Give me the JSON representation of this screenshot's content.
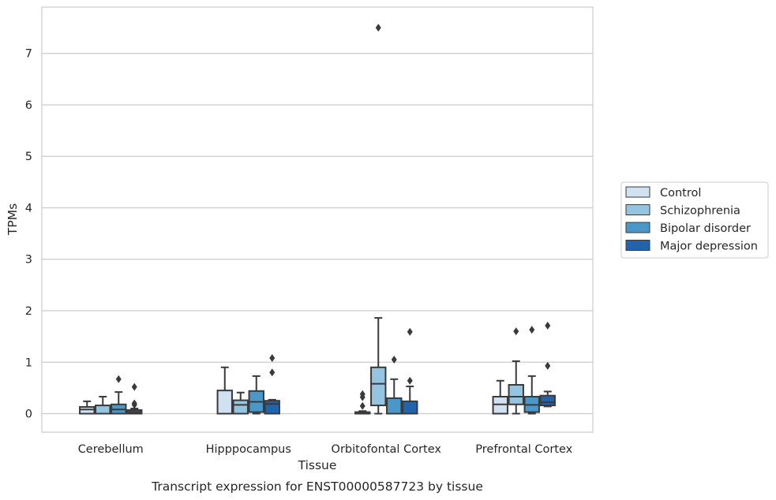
{
  "chart_data": {
    "type": "box",
    "title": "",
    "caption": "Transcript expression for ENST00000587723 by tissue",
    "xlabel": "Tissue",
    "ylabel": "TPMs",
    "ylim": [
      -0.36,
      7.9
    ],
    "yticks": [
      "0",
      "1",
      "2",
      "3",
      "4",
      "5",
      "6",
      "7"
    ],
    "grid": "horizontal",
    "legend_position": "right",
    "categories": [
      "Cerebellum",
      "Hipppocampus",
      "Orbitofontal Cortex",
      "Prefrontal Cortex"
    ],
    "series": [
      {
        "name": "Control",
        "color": "#d0e1f2",
        "boxes": [
          {
            "q1": 0.0,
            "median": 0.08,
            "q3": 0.13,
            "whisker_low": 0.0,
            "whisker_high": 0.24,
            "outliers": []
          },
          {
            "q1": 0.0,
            "median": 0.0,
            "q3": 0.45,
            "whisker_low": 0.0,
            "whisker_high": 0.9,
            "outliers": []
          },
          {
            "q1": 0.0,
            "median": 0.0,
            "q3": 0.03,
            "whisker_low": 0.0,
            "whisker_high": 0.05,
            "outliers": [
              0.15,
              0.32,
              0.38
            ]
          },
          {
            "q1": 0.0,
            "median": 0.18,
            "q3": 0.33,
            "whisker_low": 0.0,
            "whisker_high": 0.64,
            "outliers": []
          }
        ]
      },
      {
        "name": "Schizophrenia",
        "color": "#94c4df",
        "boxes": [
          {
            "q1": 0.0,
            "median": 0.0,
            "q3": 0.16,
            "whisker_low": 0.0,
            "whisker_high": 0.33,
            "outliers": []
          },
          {
            "q1": 0.0,
            "median": 0.17,
            "q3": 0.26,
            "whisker_low": 0.0,
            "whisker_high": 0.41,
            "outliers": []
          },
          {
            "q1": 0.16,
            "median": 0.58,
            "q3": 0.9,
            "whisker_low": 0.0,
            "whisker_high": 1.86,
            "outliers": [
              7.5
            ]
          },
          {
            "q1": 0.18,
            "median": 0.33,
            "q3": 0.56,
            "whisker_low": 0.0,
            "whisker_high": 1.02,
            "outliers": [
              1.6
            ]
          }
        ]
      },
      {
        "name": "Bipolar disorder",
        "color": "#4a98c9",
        "boxes": [
          {
            "q1": 0.0,
            "median": 0.08,
            "q3": 0.18,
            "whisker_low": 0.0,
            "whisker_high": 0.42,
            "outliers": [
              0.67
            ]
          },
          {
            "q1": 0.03,
            "median": 0.23,
            "q3": 0.44,
            "whisker_low": 0.0,
            "whisker_high": 0.73,
            "outliers": []
          },
          {
            "q1": 0.0,
            "median": 0.0,
            "q3": 0.3,
            "whisker_low": 0.0,
            "whisker_high": 0.67,
            "outliers": [
              1.05
            ]
          },
          {
            "q1": 0.03,
            "median": 0.17,
            "q3": 0.33,
            "whisker_low": 0.0,
            "whisker_high": 0.73,
            "outliers": [
              1.63
            ]
          }
        ]
      },
      {
        "name": "Major depression",
        "color": "#2164ab",
        "boxes": [
          {
            "q1": 0.0,
            "median": 0.03,
            "q3": 0.07,
            "whisker_low": 0.0,
            "whisker_high": 0.1,
            "outliers": [
              0.17,
              0.2,
              0.52
            ]
          },
          {
            "q1": 0.0,
            "median": 0.19,
            "q3": 0.25,
            "whisker_low": 0.0,
            "whisker_high": 0.27,
            "outliers": [
              0.8,
              1.08
            ]
          },
          {
            "q1": 0.0,
            "median": 0.0,
            "q3": 0.24,
            "whisker_low": 0.0,
            "whisker_high": 0.53,
            "outliers": [
              0.64,
              1.59
            ]
          },
          {
            "q1": 0.16,
            "median": 0.22,
            "q3": 0.35,
            "whisker_low": 0.14,
            "whisker_high": 0.43,
            "outliers": [
              0.93,
              1.71
            ]
          }
        ]
      }
    ]
  }
}
